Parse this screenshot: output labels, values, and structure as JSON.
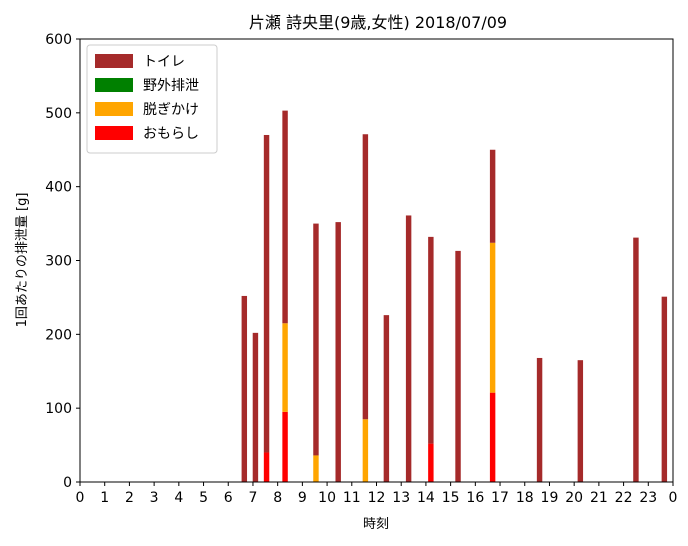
{
  "chart_data": {
    "type": "bar",
    "stacked": true,
    "title": "片瀬 詩央里(9歳,女性) 2018/07/09",
    "xlabel": "時刻",
    "ylabel": "1回あたりの排泄量 [g]",
    "xlim": [
      0,
      24
    ],
    "ylim": [
      0,
      600
    ],
    "x_ticks": [
      "0",
      "1",
      "2",
      "3",
      "4",
      "5",
      "6",
      "7",
      "8",
      "9",
      "10",
      "11",
      "12",
      "13",
      "14",
      "15",
      "16",
      "17",
      "18",
      "19",
      "20",
      "21",
      "22",
      "23",
      "0"
    ],
    "y_ticks": [
      0,
      100,
      200,
      300,
      400,
      500,
      600
    ],
    "grid": false,
    "legend_position": "top-left",
    "bar_width_hours": 0.22,
    "series": [
      {
        "name": "トイレ",
        "color": "#a52a2a"
      },
      {
        "name": "野外排泄",
        "color": "#008000"
      },
      {
        "name": "脱ぎかけ",
        "color": "#ffa500"
      },
      {
        "name": "おもらし",
        "color": "#ff0000"
      }
    ],
    "events": [
      {
        "x": 6.65,
        "total": 252,
        "omorashi": 0,
        "nugikake": 0
      },
      {
        "x": 7.1,
        "total": 202,
        "omorashi": 0,
        "nugikake": 0
      },
      {
        "x": 7.55,
        "total": 470,
        "omorashi": 40,
        "nugikake": 0
      },
      {
        "x": 8.3,
        "total": 503,
        "omorashi": 95,
        "nugikake": 120
      },
      {
        "x": 9.55,
        "total": 350,
        "omorashi": 0,
        "nugikake": 36
      },
      {
        "x": 10.45,
        "total": 352,
        "omorashi": 0,
        "nugikake": 0
      },
      {
        "x": 11.55,
        "total": 471,
        "omorashi": 0,
        "nugikake": 85
      },
      {
        "x": 12.4,
        "total": 226,
        "omorashi": 0,
        "nugikake": 0
      },
      {
        "x": 13.3,
        "total": 361,
        "omorashi": 0,
        "nugikake": 0
      },
      {
        "x": 14.2,
        "total": 332,
        "omorashi": 52,
        "nugikake": 0
      },
      {
        "x": 15.3,
        "total": 313,
        "omorashi": 0,
        "nugikake": 0
      },
      {
        "x": 16.7,
        "total": 450,
        "omorashi": 121,
        "nugikake": 203
      },
      {
        "x": 18.6,
        "total": 168,
        "omorashi": 0,
        "nugikake": 0
      },
      {
        "x": 20.25,
        "total": 165,
        "omorashi": 0,
        "nugikake": 0
      },
      {
        "x": 22.5,
        "total": 331,
        "omorashi": 0,
        "nugikake": 0
      },
      {
        "x": 23.65,
        "total": 251,
        "omorashi": 0,
        "nugikake": 0
      }
    ]
  }
}
